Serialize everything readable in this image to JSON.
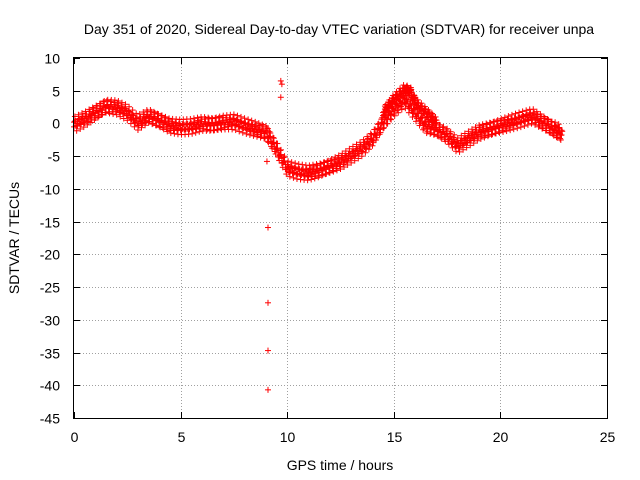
{
  "chart_data": {
    "type": "scatter",
    "title": "Day 351 of 2020, Sidereal Day-to-day VTEC variation (SDTVAR) for receiver unpa",
    "xlabel": "GPS time / hours",
    "ylabel": "SDTVAR / TECUs",
    "xlim": [
      0,
      25
    ],
    "ylim": [
      -45,
      10
    ],
    "xticks": [
      0,
      5,
      10,
      15,
      20,
      25
    ],
    "yticks": [
      10,
      5,
      0,
      -5,
      -10,
      -15,
      -20,
      -25,
      -30,
      -35,
      -40,
      -45
    ],
    "grid": true,
    "legend": "none",
    "marker": "+",
    "series": [
      {
        "name": "SDTVAR",
        "color": "#ff0000",
        "main_curve": {
          "x": [
            0.0,
            0.5,
            1.0,
            1.5,
            2.0,
            2.5,
            3.0,
            3.5,
            4.0,
            4.5,
            5.0,
            5.5,
            6.0,
            6.5,
            7.0,
            7.5,
            8.0,
            8.5,
            9.0,
            9.5,
            10.0,
            10.5,
            11.0,
            11.5,
            12.0,
            12.5,
            13.0,
            13.5,
            14.0,
            14.5,
            15.0,
            15.5,
            16.0,
            16.5,
            17.0,
            17.5,
            18.0,
            18.5,
            19.0,
            19.5,
            20.0,
            20.5,
            21.0,
            21.5,
            22.0,
            22.5,
            22.9
          ],
          "y": [
            0.2,
            1.0,
            2.0,
            3.0,
            2.8,
            2.0,
            0.5,
            1.5,
            0.8,
            0.0,
            -0.2,
            -0.1,
            0.3,
            0.2,
            0.5,
            0.6,
            0.0,
            -0.5,
            -1.0,
            -3.5,
            -6.5,
            -7.0,
            -7.2,
            -6.8,
            -6.2,
            -5.5,
            -4.5,
            -3.5,
            -2.0,
            0.5,
            2.5,
            4.0,
            2.0,
            0.0,
            -0.5,
            -1.5,
            -3.0,
            -2.0,
            -1.0,
            -0.5,
            0.0,
            0.5,
            1.0,
            1.5,
            0.5,
            -0.5,
            -1.2
          ]
        },
        "upper_branch": {
          "x": [
            14.5,
            15.0,
            15.5,
            15.8,
            16.0,
            16.5,
            17.0
          ],
          "y": [
            2.0,
            4.0,
            5.5,
            5.0,
            3.5,
            2.0,
            0.5
          ]
        },
        "outliers": {
          "x": [
            9.05,
            9.1,
            9.1,
            9.1,
            9.1,
            9.1,
            9.7,
            9.7,
            9.75
          ],
          "y": [
            -5.8,
            -15.9,
            -27.4,
            -34.7,
            -40.7,
            -0.8,
            6.5,
            4.0,
            6.0
          ]
        }
      }
    ]
  }
}
